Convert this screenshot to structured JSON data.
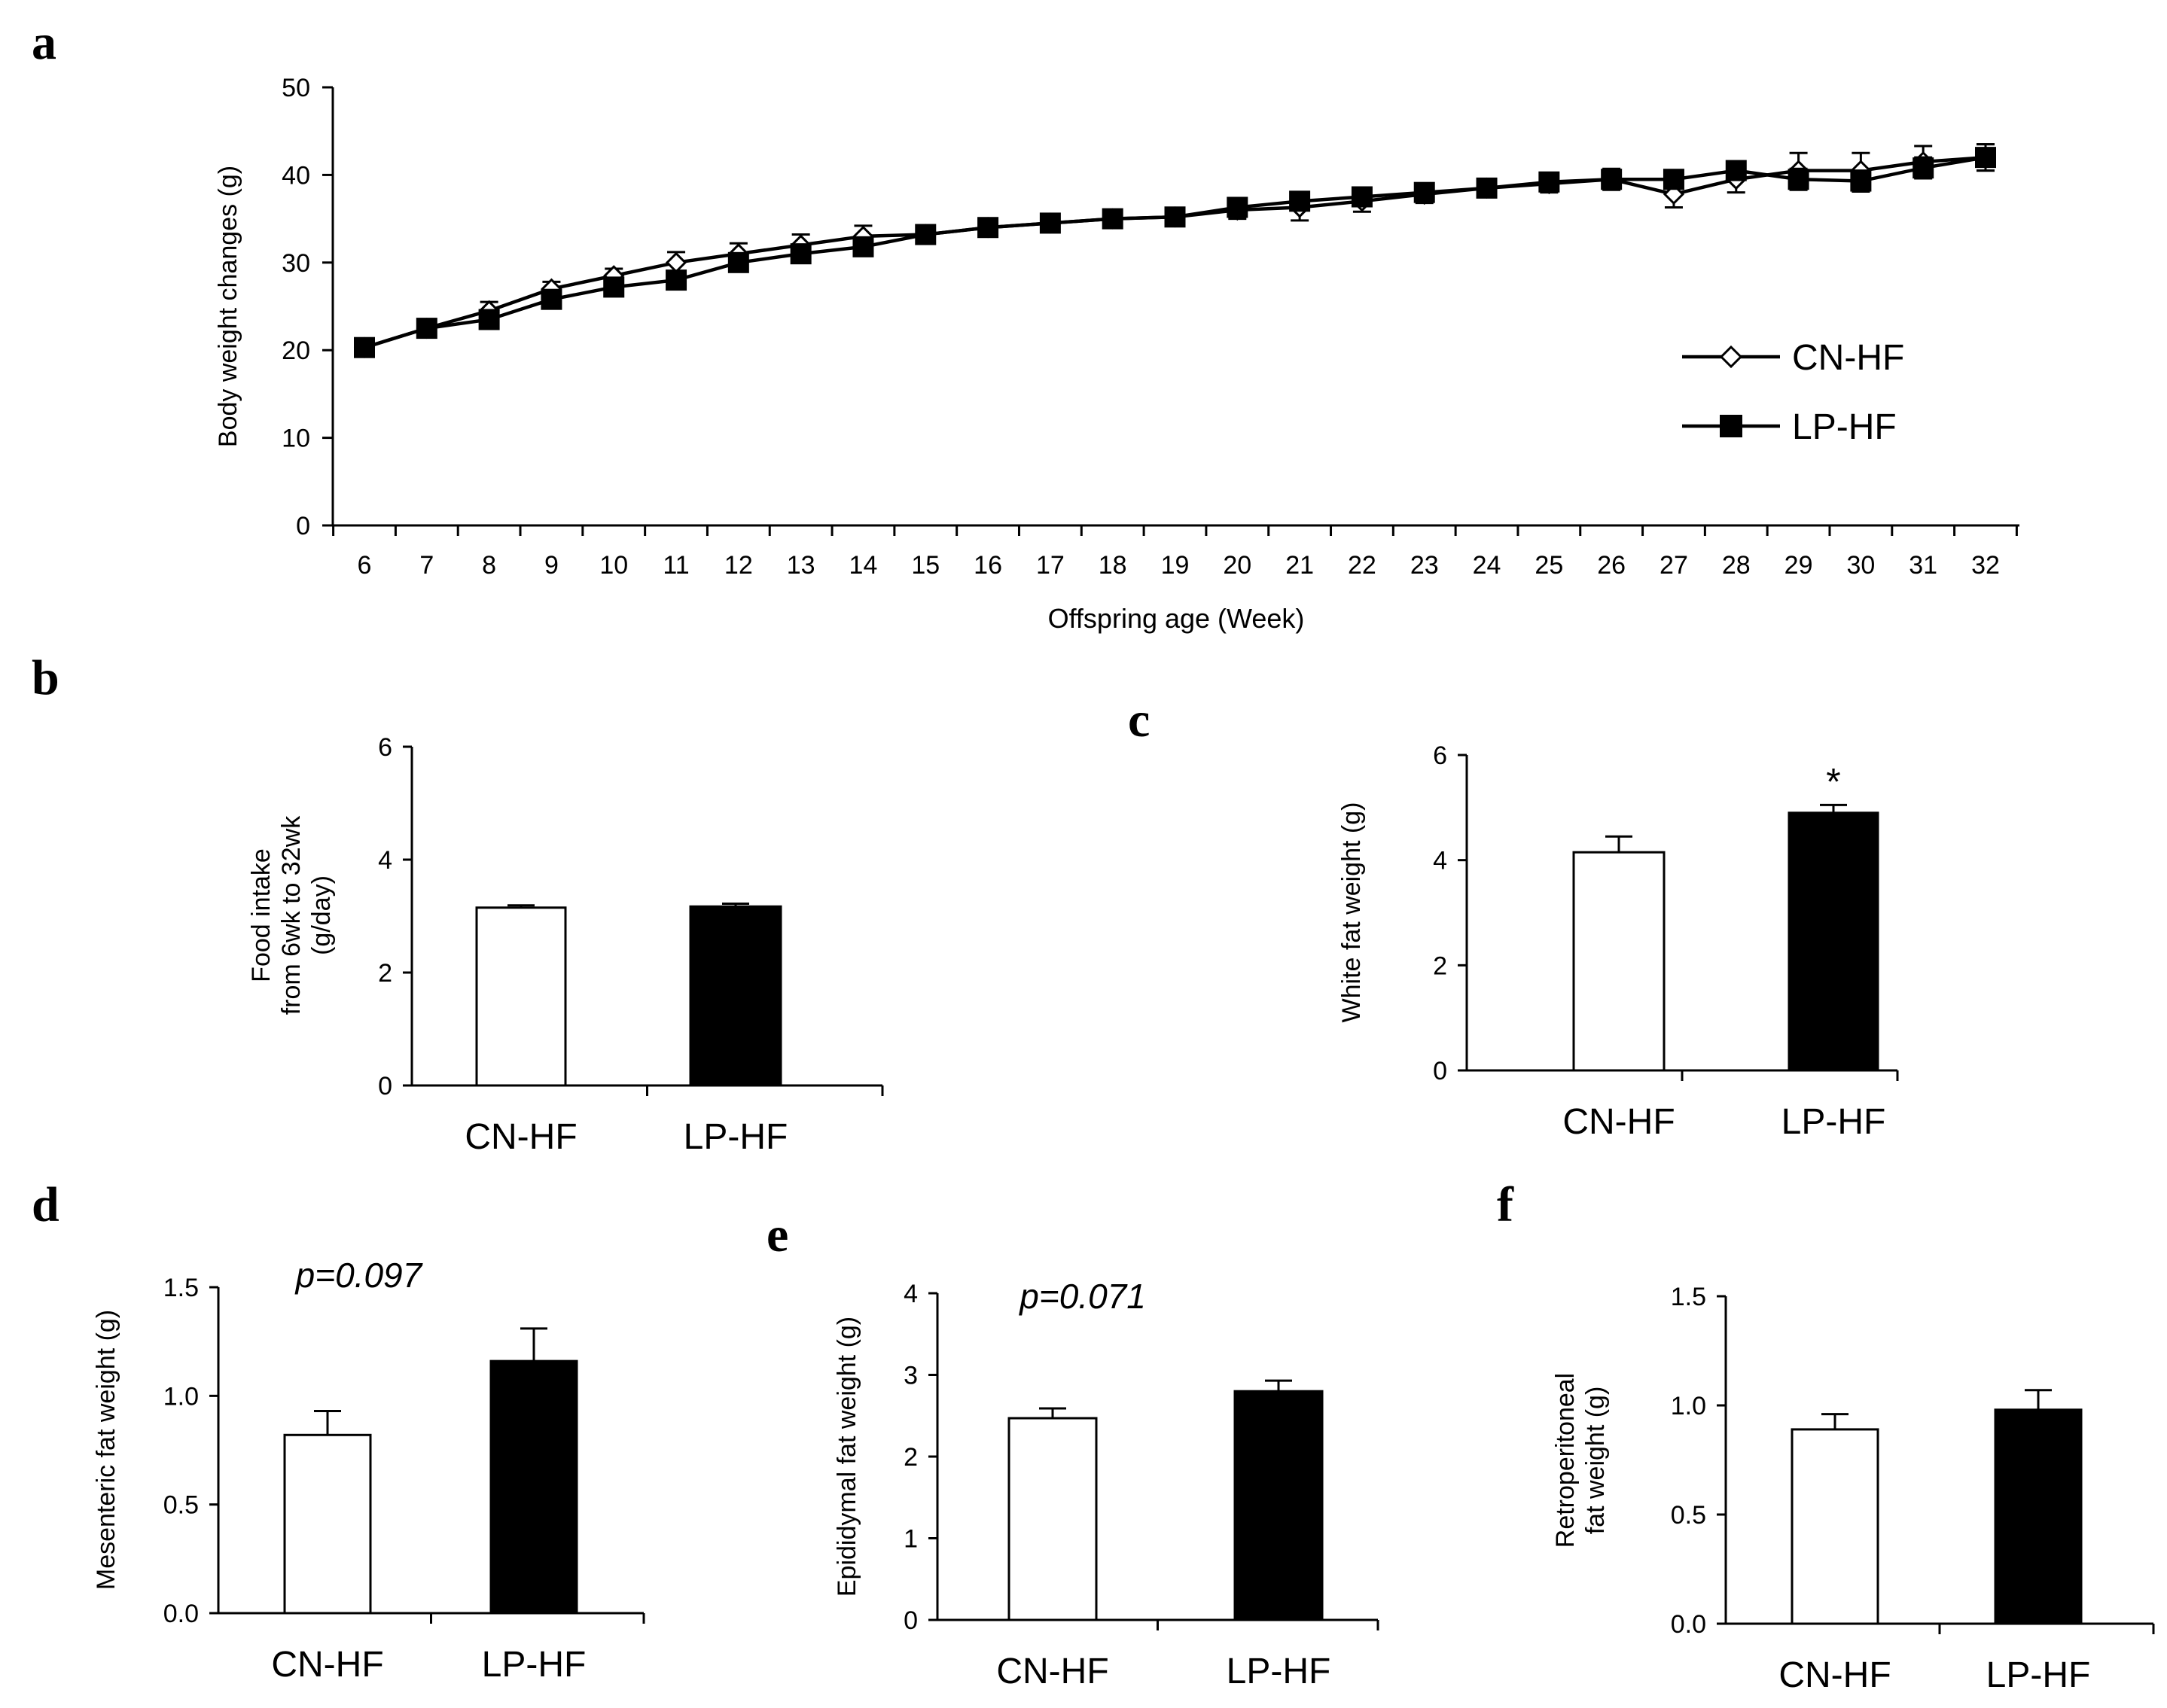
{
  "colors": {
    "ink": "#000000",
    "open_fill": "#ffffff",
    "filled": "#000000"
  },
  "chart_data": [
    {
      "panel": "a",
      "type": "line",
      "xlabel": "Offspring age (Week)",
      "ylabel": "Body weight changes (g)",
      "ylim": [
        0,
        50
      ],
      "yticks": [
        0,
        10,
        20,
        30,
        40,
        50
      ],
      "x": [
        6,
        7,
        8,
        9,
        10,
        11,
        12,
        13,
        14,
        15,
        16,
        17,
        18,
        19,
        20,
        21,
        22,
        23,
        24,
        25,
        26,
        27,
        28,
        29,
        30,
        31,
        32
      ],
      "legend_position": "lower-right",
      "series": [
        {
          "name": "CN-HF",
          "marker": "open-diamond",
          "values": [
            20.3,
            22.5,
            24.5,
            27.0,
            28.5,
            30.0,
            31.0,
            32.0,
            33.0,
            33.2,
            34.0,
            34.5,
            35.0,
            35.2,
            36.0,
            36.3,
            37.0,
            37.8,
            38.5,
            39.0,
            39.5,
            37.8,
            39.5,
            40.5,
            40.5,
            41.5,
            42.0
          ],
          "errors": [
            0.8,
            0.8,
            1.0,
            0.8,
            0.8,
            1.2,
            1.2,
            1.2,
            1.2,
            0.8,
            1.0,
            0.8,
            0.8,
            0.8,
            1.0,
            1.5,
            1.2,
            1.0,
            0.8,
            1.0,
            1.2,
            1.5,
            1.5,
            2.0,
            2.0,
            1.8,
            1.5
          ]
        },
        {
          "name": "LP-HF",
          "marker": "filled-square",
          "values": [
            20.3,
            22.5,
            23.5,
            25.8,
            27.2,
            28.0,
            30.0,
            31.0,
            31.8,
            33.2,
            34.0,
            34.5,
            35.0,
            35.2,
            36.3,
            37.0,
            37.5,
            38.0,
            38.5,
            39.2,
            39.5,
            39.5,
            40.5,
            39.5,
            39.3,
            40.8,
            42.0
          ],
          "errors": [
            0.8,
            0.8,
            0.8,
            0.8,
            0.8,
            1.0,
            1.0,
            1.0,
            1.0,
            0.8,
            1.0,
            0.8,
            0.8,
            0.8,
            1.0,
            1.0,
            1.0,
            1.0,
            0.8,
            1.0,
            1.0,
            1.0,
            1.0,
            1.2,
            1.2,
            1.2,
            1.5
          ]
        }
      ]
    },
    {
      "panel": "b",
      "type": "bar",
      "ylabel": [
        "Food intake",
        "from 6wk to 32wk",
        "(g/day)"
      ],
      "ylim": [
        0,
        6
      ],
      "yticks": [
        "0",
        "2",
        "4",
        "6"
      ],
      "categories": [
        "CN-HF",
        "LP-HF"
      ],
      "values": [
        3.15,
        3.17
      ],
      "errors": [
        0.04,
        0.05
      ],
      "annotation": ""
    },
    {
      "panel": "c",
      "type": "bar",
      "ylabel": [
        "White fat weight (g)"
      ],
      "ylim": [
        0,
        6
      ],
      "yticks": [
        "0",
        "2",
        "4",
        "6"
      ],
      "categories": [
        "CN-HF",
        "LP-HF"
      ],
      "values": [
        4.15,
        4.9
      ],
      "errors": [
        0.3,
        0.15
      ],
      "annotation": "*"
    },
    {
      "panel": "d",
      "type": "bar",
      "ylabel": [
        "Mesenteric fat weight (g)"
      ],
      "ylim": [
        0,
        1.5
      ],
      "yticks": [
        "0.0",
        "0.5",
        "1.0",
        "1.5"
      ],
      "categories": [
        "CN-HF",
        "LP-HF"
      ],
      "values": [
        0.82,
        1.16
      ],
      "errors": [
        0.11,
        0.15
      ],
      "annotation": "p=0.097"
    },
    {
      "panel": "e",
      "type": "bar",
      "ylabel": [
        "Epididymal fat weight (g)"
      ],
      "ylim": [
        0,
        4
      ],
      "yticks": [
        "0",
        "1",
        "2",
        "3",
        "4"
      ],
      "categories": [
        "CN-HF",
        "LP-HF"
      ],
      "values": [
        2.47,
        2.8
      ],
      "errors": [
        0.12,
        0.13
      ],
      "annotation": "p=0.071"
    },
    {
      "panel": "f",
      "type": "bar",
      "ylabel": [
        "Retroperitoneal",
        "fat weight (g)"
      ],
      "ylim": [
        0,
        1.5
      ],
      "yticks": [
        "0.0",
        "0.5",
        "1.0",
        "1.5"
      ],
      "categories": [
        "CN-HF",
        "LP-HF"
      ],
      "values": [
        0.89,
        0.98
      ],
      "errors": [
        0.07,
        0.09
      ],
      "annotation": ""
    }
  ]
}
